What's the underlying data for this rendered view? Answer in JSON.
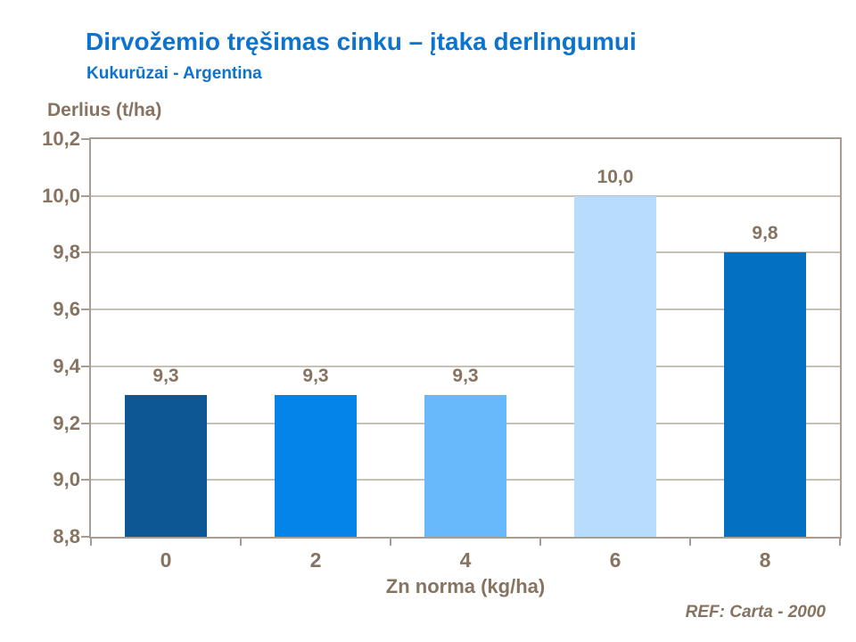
{
  "slide": {
    "title": "Dirvožemio tręšimas cinku – įtaka derlingumui",
    "subtitle": "Kukurūzai - Argentina",
    "ref_note": "REF: Carta - 2000"
  },
  "colors": {
    "title_blue": "#0c74cf",
    "text_brown": "#867360",
    "axis_frame": "#a89d90",
    "gridline": "#c9c0b4",
    "bar_colors": [
      "#0d5795",
      "#0484e8",
      "#67b9fc",
      "#b8dcfb",
      "#0470c2"
    ]
  },
  "chart_data": {
    "type": "bar",
    "title": "Dirvožemio tręšimas cinku – įtaka derlingumui",
    "subtitle": "Kukurūzai - Argentina",
    "categories": [
      "0",
      "2",
      "4",
      "6",
      "8"
    ],
    "values": [
      9.3,
      9.3,
      9.3,
      10.0,
      9.8
    ],
    "bar_labels": [
      "9,3",
      "9,3",
      "9,3",
      "10,0",
      "9,8"
    ],
    "xlabel": "Zn norma (kg/ha)",
    "ylabel": "Derlius (t/ha)",
    "ylim": [
      8.8,
      10.2
    ],
    "ytick_step": 0.2,
    "ytick_labels": [
      "8,8",
      "9,0",
      "9,2",
      "9,4",
      "9,6",
      "9,8",
      "10,0",
      "10,2"
    ],
    "grid": true,
    "legend_position": "none"
  }
}
